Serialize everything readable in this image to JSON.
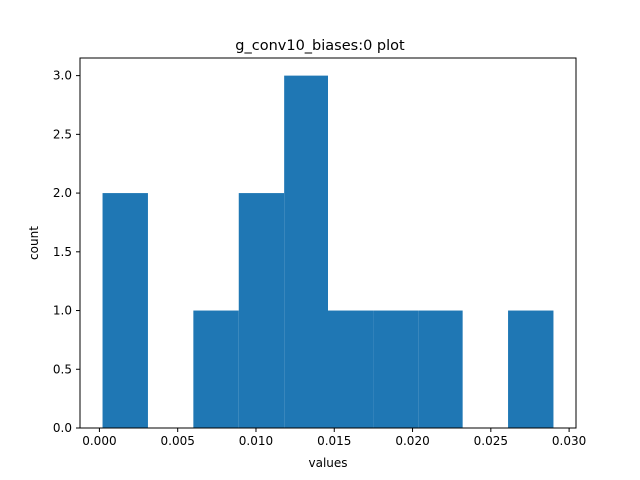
{
  "chart_data": {
    "type": "bar",
    "title": "g_conv10_biases:0 plot",
    "xlabel": "values",
    "ylabel": "count",
    "bins": [
      {
        "x0": 0.0002,
        "x1": 0.0031,
        "count": 2
      },
      {
        "x0": 0.0031,
        "x1": 0.006,
        "count": 0
      },
      {
        "x0": 0.006,
        "x1": 0.0089,
        "count": 1
      },
      {
        "x0": 0.0089,
        "x1": 0.0118,
        "count": 2
      },
      {
        "x0": 0.0118,
        "x1": 0.0146,
        "count": 3
      },
      {
        "x0": 0.0146,
        "x1": 0.0175,
        "count": 1
      },
      {
        "x0": 0.0175,
        "x1": 0.0204,
        "count": 1
      },
      {
        "x0": 0.0204,
        "x1": 0.0232,
        "count": 1
      },
      {
        "x0": 0.0232,
        "x1": 0.0261,
        "count": 0
      },
      {
        "x0": 0.0261,
        "x1": 0.029,
        "count": 1
      }
    ],
    "xlim": [
      -0.00124,
      0.03044
    ],
    "ylim": [
      0,
      3.15
    ],
    "xticks": [
      0.0,
      0.005,
      0.01,
      0.015,
      0.02,
      0.025,
      0.03
    ],
    "xtick_labels": [
      "0.000",
      "0.005",
      "0.010",
      "0.015",
      "0.020",
      "0.025",
      "0.030"
    ],
    "yticks": [
      0.0,
      0.5,
      1.0,
      1.5,
      2.0,
      2.5,
      3.0
    ],
    "ytick_labels": [
      "0.0",
      "0.5",
      "1.0",
      "1.5",
      "2.0",
      "2.5",
      "3.0"
    ],
    "bar_color": "#1f77b4",
    "grid": false,
    "legend": false
  }
}
